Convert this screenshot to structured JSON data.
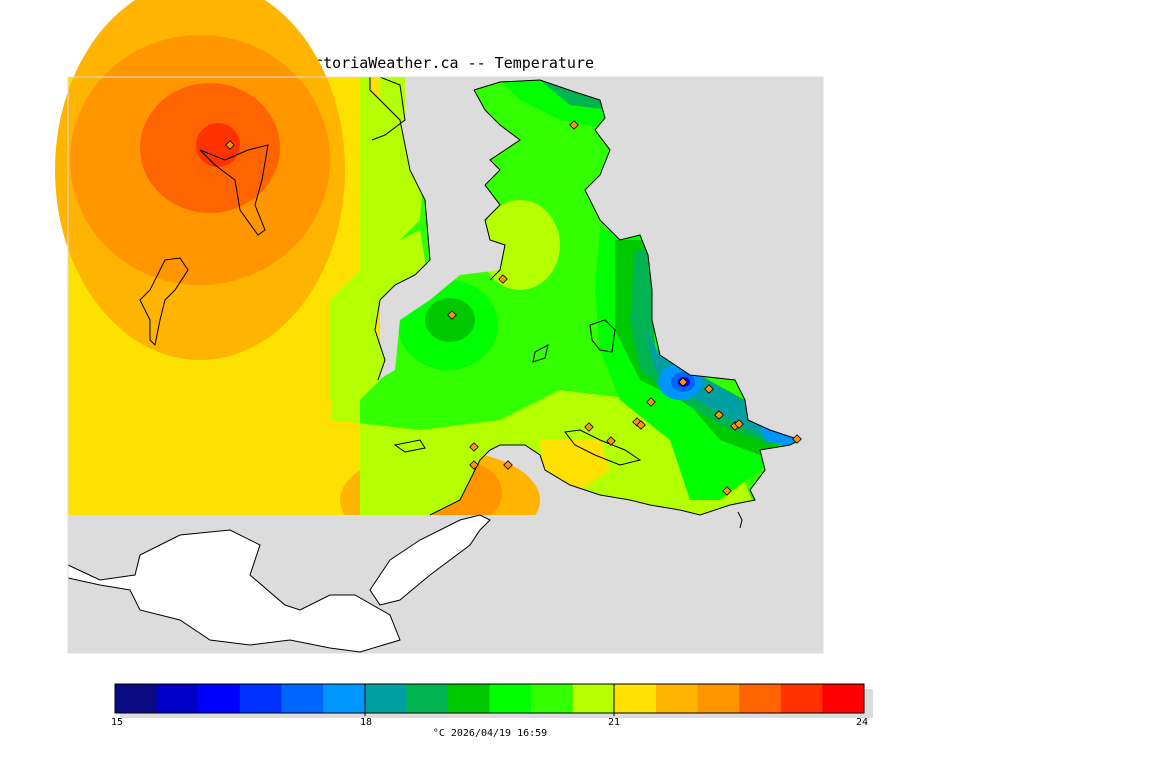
{
  "title": "VictoriaWeather.ca -- Temperature",
  "colorbar": {
    "min": 15,
    "max": 24,
    "tick_labels": [
      "15",
      "18",
      "21",
      "24"
    ],
    "colors": [
      "#0a0a82",
      "#0000c8",
      "#0000ff",
      "#0032ff",
      "#0064ff",
      "#0096ff",
      "#00a0a0",
      "#00b450",
      "#00c800",
      "#00ff00",
      "#32ff00",
      "#b4ff00",
      "#ffe100",
      "#ffb400",
      "#ff9600",
      "#ff6400",
      "#ff3200",
      "#ff0000"
    ],
    "caption": "°C  2026/04/19 16:59"
  },
  "map": {
    "background_color": "#dcdcdc",
    "land_unmapped_color": "#ffffff",
    "stations_visible": true
  }
}
